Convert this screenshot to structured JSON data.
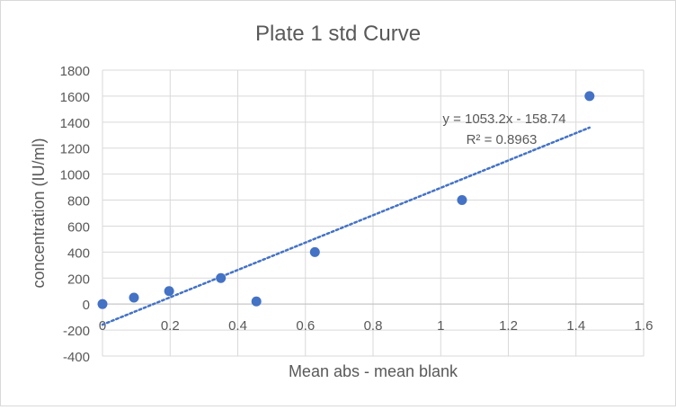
{
  "chart_data": {
    "type": "scatter",
    "title": "Plate 1 std Curve",
    "xlabel": "Mean abs - mean blank",
    "ylabel": "concentration (IU/ml)",
    "xlim": [
      0,
      1.6
    ],
    "ylim": [
      -400,
      1800
    ],
    "x_ticks": [
      0,
      0.2,
      0.4,
      0.6,
      0.8,
      1,
      1.2,
      1.4,
      1.6
    ],
    "y_ticks": [
      -400,
      -200,
      0,
      200,
      400,
      600,
      800,
      1000,
      1200,
      1400,
      1600,
      1800
    ],
    "grid": true,
    "legend": "none",
    "series": [
      {
        "marker_color": "#4472c4",
        "points": [
          {
            "x": 0.0,
            "y": 0
          },
          {
            "x": 0.093,
            "y": 50
          },
          {
            "x": 0.197,
            "y": 100
          },
          {
            "x": 0.35,
            "y": 200
          },
          {
            "x": 0.455,
            "y": 20
          },
          {
            "x": 0.628,
            "y": 400
          },
          {
            "x": 1.063,
            "y": 800
          },
          {
            "x": 1.44,
            "y": 1600
          }
        ]
      }
    ],
    "trendline": {
      "type": "linear",
      "slope": 1053.2,
      "intercept": -158.74,
      "x_range": [
        0,
        1.44
      ],
      "color": "#4472c4",
      "style": "dotted",
      "equation_label": "y = 1053.2x - 158.74",
      "r2_label": "R² = 0.8963"
    }
  }
}
